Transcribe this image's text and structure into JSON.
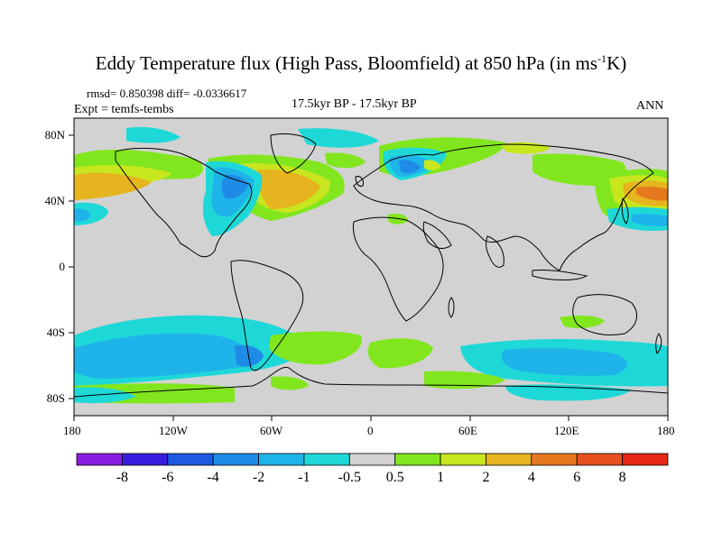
{
  "title": {
    "main": "Eddy Temperature flux (High Pass, Bloomfield) at 850 hPa (in ms",
    "sup": "-1",
    "tail": "K)"
  },
  "stats": "rmsd= 0.850398 diff= -0.0336617",
  "expt": "Expt = temfs-tembs",
  "period": "17.5kyr BP - 17.5kyr BP",
  "season": "ANN",
  "x_ticks": [
    "180",
    "120W",
    "60W",
    "0",
    "60E",
    "120E",
    "180"
  ],
  "y_ticks": [
    "80N",
    "40N",
    "0",
    "40S",
    "80S"
  ],
  "colorbar": {
    "labels": [
      "-8",
      "-6",
      "-4",
      "-2",
      "-1",
      "-0.5",
      "0.5",
      "1",
      "2",
      "4",
      "6",
      "8"
    ],
    "colors": [
      "#8a1ee0",
      "#3a1ee0",
      "#1e5ae0",
      "#1e8ce6",
      "#1eb4ea",
      "#1ed8d8",
      "#d2d2d2",
      "#82e61e",
      "#c8e61e",
      "#e6b41e",
      "#e6781e",
      "#e6501e",
      "#e62814"
    ]
  },
  "colors": {
    "land_bg": "#d2d2d2",
    "coast": "#000000"
  }
}
